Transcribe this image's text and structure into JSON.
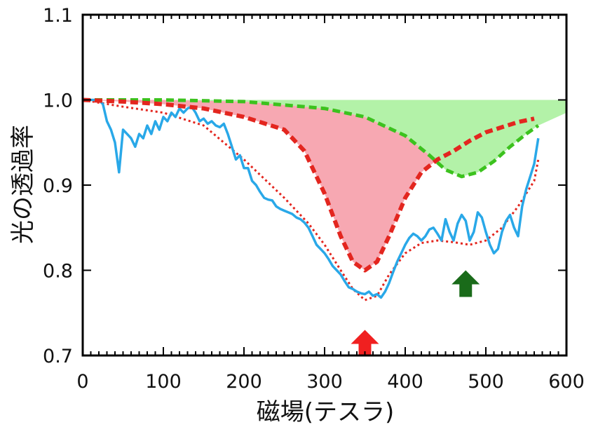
{
  "chart_data": {
    "type": "line",
    "xlabel": "磁場(テスラ)",
    "ylabel": "光の透過率",
    "xlim": [
      0,
      600
    ],
    "ylim": [
      0.7,
      1.1
    ],
    "x_ticks": [
      "0",
      "100",
      "200",
      "300",
      "400",
      "500",
      "600"
    ],
    "y_ticks": [
      "0.7",
      "0.8",
      "0.9",
      "1.0",
      "1.1"
    ],
    "grid": false,
    "legend": "none",
    "colors": {
      "measured": "#29a8e8",
      "red_fit": "#e3261f",
      "green_fit": "#3cc21e",
      "red_fill": "#f7a8b2",
      "green_fill": "#b3f2a8",
      "red_arrow": "#f02020",
      "green_arrow": "#1a6b1a"
    },
    "series": [
      {
        "role": "measured",
        "style": "solid",
        "x": [
          0,
          20,
          25,
          30,
          35,
          40,
          45,
          50,
          55,
          60,
          65,
          70,
          75,
          80,
          85,
          90,
          95,
          100,
          105,
          110,
          115,
          120,
          125,
          130,
          135,
          140,
          145,
          150,
          155,
          160,
          165,
          170,
          175,
          180,
          185,
          190,
          195,
          200,
          205,
          210,
          215,
          220,
          225,
          230,
          235,
          240,
          245,
          250,
          255,
          260,
          265,
          270,
          275,
          280,
          285,
          290,
          295,
          300,
          305,
          310,
          315,
          320,
          325,
          330,
          335,
          340,
          345,
          350,
          355,
          360,
          365,
          370,
          375,
          380,
          385,
          390,
          395,
          400,
          405,
          410,
          415,
          420,
          425,
          430,
          435,
          440,
          445,
          450,
          455,
          460,
          465,
          470,
          475,
          480,
          485,
          490,
          495,
          500,
          505,
          510,
          515,
          520,
          525,
          530,
          535,
          540,
          545,
          550,
          555,
          560,
          565
        ],
        "y": [
          1.0,
          1.0,
          0.995,
          0.975,
          0.965,
          0.95,
          0.915,
          0.965,
          0.96,
          0.955,
          0.945,
          0.96,
          0.955,
          0.97,
          0.96,
          0.975,
          0.965,
          0.98,
          0.975,
          0.985,
          0.98,
          0.99,
          0.985,
          0.99,
          0.992,
          0.985,
          0.975,
          0.978,
          0.972,
          0.975,
          0.97,
          0.968,
          0.972,
          0.96,
          0.945,
          0.93,
          0.935,
          0.92,
          0.92,
          0.905,
          0.9,
          0.892,
          0.885,
          0.883,
          0.882,
          0.875,
          0.872,
          0.87,
          0.868,
          0.866,
          0.862,
          0.86,
          0.856,
          0.85,
          0.84,
          0.83,
          0.825,
          0.82,
          0.813,
          0.805,
          0.8,
          0.795,
          0.787,
          0.78,
          0.778,
          0.775,
          0.773,
          0.772,
          0.775,
          0.77,
          0.772,
          0.768,
          0.775,
          0.785,
          0.798,
          0.81,
          0.82,
          0.83,
          0.838,
          0.843,
          0.84,
          0.835,
          0.84,
          0.848,
          0.85,
          0.843,
          0.835,
          0.86,
          0.845,
          0.835,
          0.855,
          0.865,
          0.858,
          0.835,
          0.845,
          0.868,
          0.862,
          0.845,
          0.83,
          0.82,
          0.825,
          0.845,
          0.858,
          0.865,
          0.85,
          0.84,
          0.875,
          0.895,
          0.91,
          0.925,
          0.955
        ]
      },
      {
        "role": "red_fit_thick",
        "style": "dashed",
        "x": [
          0,
          50,
          100,
          150,
          200,
          250,
          275,
          300,
          320,
          335,
          350,
          365,
          380,
          400,
          420,
          440,
          460,
          480,
          500,
          520,
          540,
          560
        ],
        "y": [
          1.0,
          0.998,
          0.995,
          0.99,
          0.98,
          0.965,
          0.94,
          0.89,
          0.84,
          0.81,
          0.8,
          0.81,
          0.84,
          0.885,
          0.915,
          0.93,
          0.94,
          0.952,
          0.962,
          0.968,
          0.974,
          0.978
        ]
      },
      {
        "role": "red_fit_thin",
        "style": "dotted",
        "x": [
          0,
          50,
          100,
          150,
          200,
          250,
          280,
          300,
          320,
          335,
          350,
          365,
          380,
          400,
          420,
          440,
          460,
          480,
          500,
          520,
          540,
          560,
          565
        ],
        "y": [
          1.0,
          0.992,
          0.985,
          0.97,
          0.93,
          0.885,
          0.855,
          0.83,
          0.8,
          0.778,
          0.765,
          0.77,
          0.795,
          0.82,
          0.832,
          0.835,
          0.833,
          0.83,
          0.835,
          0.85,
          0.875,
          0.905,
          0.93
        ]
      },
      {
        "role": "green_fit",
        "style": "dashed",
        "x": [
          0,
          100,
          200,
          300,
          350,
          400,
          430,
          450,
          470,
          490,
          510,
          530,
          550,
          565
        ],
        "y": [
          1.0,
          1.0,
          0.998,
          0.99,
          0.98,
          0.958,
          0.935,
          0.918,
          0.91,
          0.915,
          0.928,
          0.945,
          0.96,
          0.97
        ]
      }
    ],
    "annotations": [
      {
        "type": "arrow",
        "direction": "up",
        "color": "red",
        "x": 350,
        "y_tip": 0.73
      },
      {
        "type": "arrow",
        "direction": "up",
        "color": "green",
        "x": 475,
        "y_tip": 0.8
      }
    ]
  }
}
